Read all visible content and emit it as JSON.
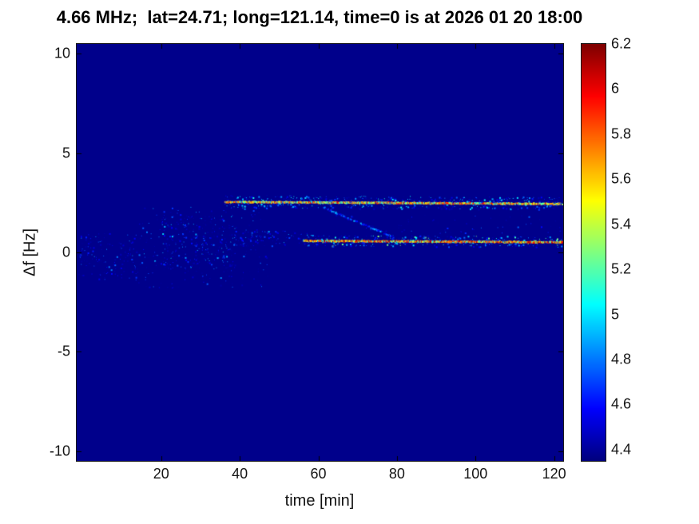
{
  "chart_data": {
    "type": "heatmap",
    "title": "4.66 MHz;  lat=24.71; long=121.14, time=0 is at 2026 01 20 18:00",
    "xlabel": "time [min]",
    "ylabel": "Δf [Hz]",
    "xlim": [
      -1.5,
      122.3
    ],
    "ylim": [
      -10.5,
      10.5
    ],
    "xticks": [
      20,
      40,
      60,
      80,
      100,
      120
    ],
    "yticks": [
      -10,
      -5,
      0,
      5,
      10
    ],
    "clim": [
      4.35,
      6.2
    ],
    "colormap": "jet",
    "colorbar_ticks": [
      4.4,
      4.6,
      4.8,
      5,
      5.2,
      5.4,
      5.6,
      5.8,
      6,
      6.2
    ],
    "background_value": 4.37,
    "grid": false,
    "legend": "colorbar-right",
    "features": [
      {
        "id": "noise-left",
        "kind": "speckle",
        "x": [
          -1,
          14
        ],
        "y": [
          -1.4,
          1.0
        ],
        "count": 170,
        "values": [
          4.38,
          4.85
        ]
      },
      {
        "id": "noise-mid-broad",
        "kind": "speckle",
        "x": [
          13,
          47
        ],
        "y": [
          -1.8,
          2.3
        ],
        "count": 300,
        "values": [
          4.38,
          4.9
        ]
      },
      {
        "id": "noise-mid-core",
        "kind": "speckle",
        "x": [
          20,
          38
        ],
        "y": [
          -0.8,
          1.9
        ],
        "count": 260,
        "values": [
          4.38,
          5.0
        ]
      },
      {
        "id": "noise-pre-lower-line",
        "kind": "speckle",
        "x": [
          38,
          58
        ],
        "y": [
          0.35,
          1.1
        ],
        "count": 110,
        "values": [
          4.38,
          4.9
        ]
      },
      {
        "id": "right-sparse-dots",
        "kind": "speckle",
        "x": [
          80,
          122
        ],
        "y": [
          0.95,
          1.9
        ],
        "count": 55,
        "values": [
          4.38,
          4.8
        ]
      },
      {
        "id": "upper-line",
        "kind": "trace",
        "x": [
          36,
          122
        ],
        "y": [
          2.58,
          2.48
        ],
        "jitter": 0.32,
        "density": 13,
        "core_prob": 0.8,
        "halo_prob": 0.55,
        "core_values": [
          4.85,
          6.05
        ],
        "halo_values": [
          4.4,
          5.1
        ]
      },
      {
        "id": "lower-line",
        "kind": "trace",
        "x": [
          56,
          122
        ],
        "y": [
          0.62,
          0.55
        ],
        "jitter": 0.28,
        "density": 13,
        "core_prob": 0.85,
        "halo_prob": 0.5,
        "core_values": [
          4.95,
          6.2
        ],
        "halo_values": [
          4.4,
          5.3
        ]
      },
      {
        "id": "diagonal-branch",
        "kind": "trace",
        "x": [
          61,
          79
        ],
        "y": [
          2.3,
          0.8
        ],
        "jitter": 0.15,
        "density": 5,
        "core_prob": 0.6,
        "halo_prob": 0.5,
        "core_values": [
          4.42,
          4.95
        ],
        "halo_values": [
          4.38,
          4.7
        ]
      }
    ]
  }
}
